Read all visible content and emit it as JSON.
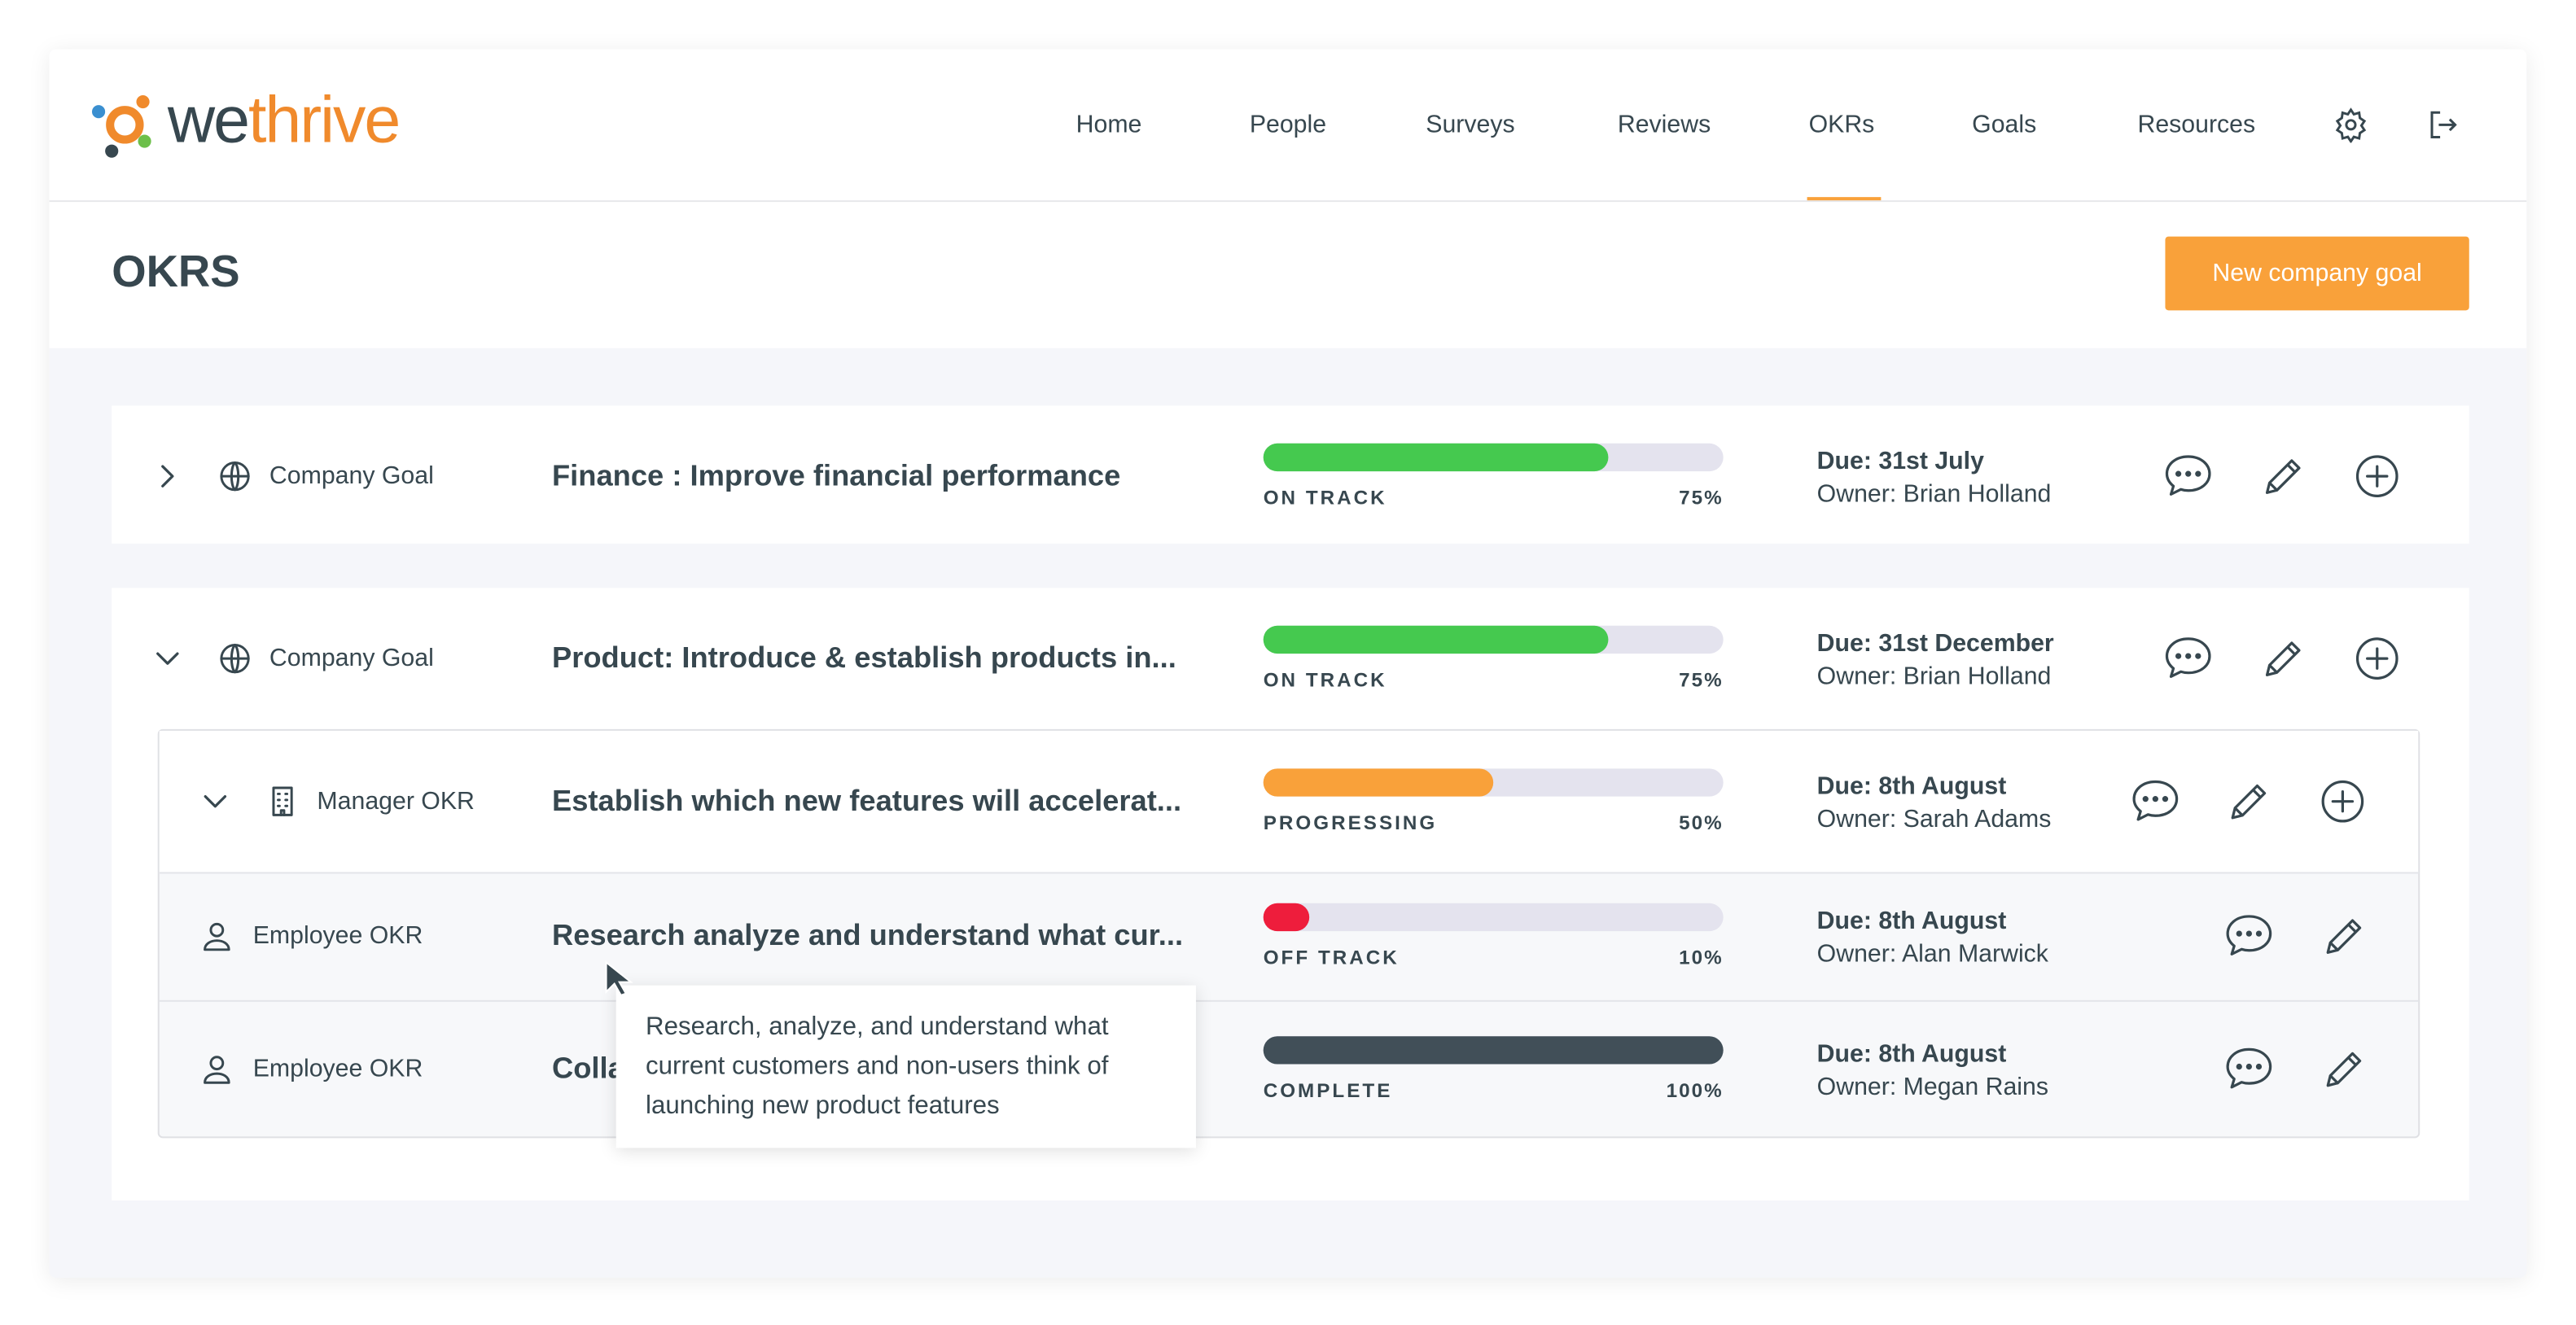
{
  "header": {
    "logo_prefix": "we",
    "logo_suffix": "thrive",
    "nav": [
      "Home",
      "People",
      "Surveys",
      "Reviews",
      "OKRs",
      "Goals",
      "Resources"
    ],
    "active_nav": 4
  },
  "page": {
    "title": "OKRS",
    "button": "New company goal"
  },
  "rows": [
    {
      "level": 0,
      "expanded": false,
      "kind": "Company Goal",
      "icon": "globe",
      "title": "Finance : Improve financial performance",
      "status": "ON TRACK",
      "color": "#45c94f",
      "percent": 75,
      "percent_label": "75%",
      "due": "Due: 31st July",
      "owner": "Owner: Brian Holland"
    },
    {
      "level": 0,
      "expanded": true,
      "kind": "Company Goal",
      "icon": "globe",
      "title": "Product: Introduce & establish products in...",
      "status": "ON TRACK",
      "color": "#45c94f",
      "percent": 75,
      "percent_label": "75%",
      "due": "Due: 31st December",
      "owner": "Owner: Brian Holland"
    },
    {
      "level": 1,
      "expanded": true,
      "kind": "Manager OKR",
      "icon": "building",
      "title": "Establish which new features will accelerat...",
      "status": "PROGRESSING",
      "color": "#f9a13a",
      "percent": 50,
      "percent_label": "50%",
      "due": "Due: 8th August",
      "owner": "Owner: Sarah Adams"
    },
    {
      "level": 2,
      "kind": "Employee OKR",
      "icon": "person",
      "title": "Research analyze and understand what cur...",
      "status": "OFF TRACK",
      "color": "#ee1d3c",
      "percent": 10,
      "percent_label": "10%",
      "due": "Due: 8th August",
      "owner": "Owner: Alan Marwick"
    },
    {
      "level": 2,
      "kind": "Employee OKR",
      "icon": "person",
      "title": "Colla",
      "status": "COMPLETE",
      "color": "#414f58",
      "percent": 100,
      "percent_label": "100%",
      "due": "Due: 8th August",
      "owner": "Owner: Megan Rains"
    }
  ],
  "tooltip": "Research, analyze, and understand what current customers and non-users think of launching new product features"
}
